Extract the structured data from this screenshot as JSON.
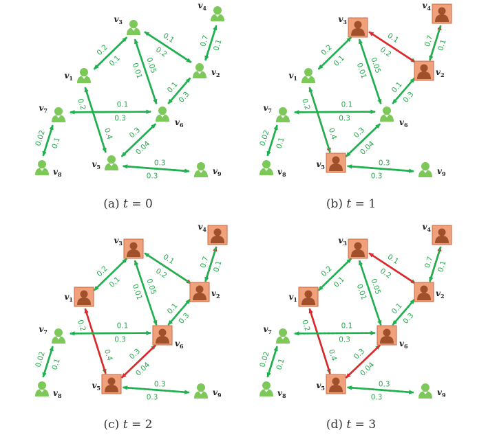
{
  "colors": {
    "edge": "#1fb04f",
    "active_edge": "#e3262b",
    "weight_text": "#27a84e",
    "active_node_fill": "#f0a07a",
    "active_node_border": "#c86a40",
    "inactive_node": "#7cc95a",
    "node_label": "#222222"
  },
  "nodes": [
    {
      "id": "v1",
      "label": "v",
      "sub": "1"
    },
    {
      "id": "v2",
      "label": "v",
      "sub": "2"
    },
    {
      "id": "v3",
      "label": "v",
      "sub": "3"
    },
    {
      "id": "v4",
      "label": "v",
      "sub": "4"
    },
    {
      "id": "v5",
      "label": "v",
      "sub": "5"
    },
    {
      "id": "v6",
      "label": "v",
      "sub": "6"
    },
    {
      "id": "v7",
      "label": "v",
      "sub": "7"
    },
    {
      "id": "v8",
      "label": "v",
      "sub": "8"
    },
    {
      "id": "v9",
      "label": "v",
      "sub": "9"
    }
  ],
  "edges": [
    {
      "from": "v1",
      "to": "v3",
      "weight": "0.2"
    },
    {
      "from": "v3",
      "to": "v1",
      "weight": "0.1"
    },
    {
      "from": "v3",
      "to": "v2",
      "weight": "0.2"
    },
    {
      "from": "v2",
      "to": "v3",
      "weight": "0.1"
    },
    {
      "from": "v2",
      "to": "v4",
      "weight": "0.7"
    },
    {
      "from": "v4",
      "to": "v2",
      "weight": "0.1"
    },
    {
      "from": "v3",
      "to": "v6",
      "weight": "0.01"
    },
    {
      "from": "v6",
      "to": "v3",
      "weight": "0.05"
    },
    {
      "from": "v6",
      "to": "v2",
      "weight": "0.3"
    },
    {
      "from": "v2",
      "to": "v6",
      "weight": "0.1"
    },
    {
      "from": "v1",
      "to": "v5",
      "weight": "0.2"
    },
    {
      "from": "v5",
      "to": "v1",
      "weight": "0.4"
    },
    {
      "from": "v7",
      "to": "v6",
      "weight": "0.3"
    },
    {
      "from": "v6",
      "to": "v7",
      "weight": "0.1"
    },
    {
      "from": "v5",
      "to": "v6",
      "weight": "0.3"
    },
    {
      "from": "v6",
      "to": "v5",
      "weight": "0.04"
    },
    {
      "from": "v5",
      "to": "v9",
      "weight": "0.3"
    },
    {
      "from": "v9",
      "to": "v5",
      "weight": "0.3"
    },
    {
      "from": "v7",
      "to": "v8",
      "weight": "0.1"
    },
    {
      "from": "v8",
      "to": "v7",
      "weight": "0.02"
    }
  ],
  "panels": [
    {
      "caption_prefix": "(a)",
      "caption_var": "t",
      "caption_eq": "= 0",
      "active_nodes": [],
      "edge_styles": {}
    },
    {
      "caption_prefix": "(b)",
      "caption_var": "t",
      "caption_eq": "= 1",
      "active_nodes": [
        "v2",
        "v3",
        "v4",
        "v5"
      ],
      "edge_styles": {
        "v2-v3": "red",
        "v2-v4": "red",
        "v1-v5": "red",
        "v3-v1": "dotted",
        "v2-v6": "dotted"
      }
    },
    {
      "caption_prefix": "(c)",
      "caption_var": "t",
      "caption_eq": "= 2",
      "active_nodes": [
        "v1",
        "v2",
        "v3",
        "v4",
        "v5",
        "v6"
      ],
      "edge_styles": {
        "v3-v2": "red",
        "v2-v4": "red",
        "v5-v1": "red",
        "v6-v5": "red",
        "v3-v1": "dotted",
        "v3-v6": "dotted",
        "v2-v6": "dotted",
        "v5-v9": "dotted"
      }
    },
    {
      "caption_prefix": "(d)",
      "caption_var": "t",
      "caption_eq": "= 3",
      "active_nodes": [
        "v1",
        "v2",
        "v3",
        "v4",
        "v5",
        "v6"
      ],
      "edge_styles": {
        "v2-v3": "red",
        "v2-v4": "red",
        "v5-v1": "red",
        "v6-v5": "red",
        "v3-v1": "dotted",
        "v3-v6": "dotted",
        "v2-v6": "dotted",
        "v6-v7": "dotted",
        "v5-v9": "dotted"
      }
    }
  ]
}
